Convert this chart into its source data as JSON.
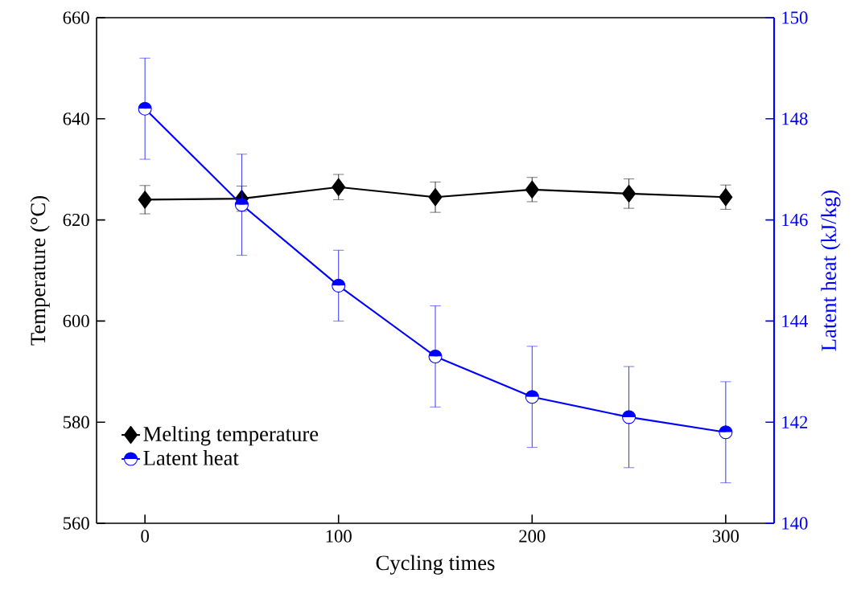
{
  "chart_data": {
    "type": "line",
    "xlabel": "Cycling times",
    "ylabel": "Temperature (°C)",
    "y2label": "Latent heat (kJ/kg)",
    "x": [
      0,
      50,
      100,
      150,
      200,
      250,
      300
    ],
    "xlim": [
      -25,
      325
    ],
    "xticks": [
      0,
      100,
      200,
      300
    ],
    "ylim": [
      560,
      660
    ],
    "yticks": [
      560,
      580,
      600,
      620,
      640,
      660
    ],
    "y2lim": [
      140,
      150
    ],
    "y2ticks": [
      140,
      142,
      144,
      146,
      148,
      150
    ],
    "legend": "bottom left",
    "grid": false,
    "line_style": "solid",
    "series": [
      {
        "name": "Melting temperature",
        "color": "#000000",
        "marker": "diamond",
        "values": [
          624,
          624.2,
          626.5,
          624.5,
          626,
          625.2,
          624.5
        ],
        "errors": [
          2.8,
          2.5,
          2.5,
          3,
          2.4,
          2.9,
          2.4
        ]
      },
      {
        "name": "Latent heat",
        "color": "#0000ff",
        "marker": "circle",
        "axis": "y2",
        "values": [
          148.2,
          146.3,
          144.7,
          143.3,
          142.5,
          142.1,
          141.8
        ],
        "errors": [
          1,
          1,
          0.7,
          1,
          1,
          1,
          1
        ]
      }
    ]
  }
}
